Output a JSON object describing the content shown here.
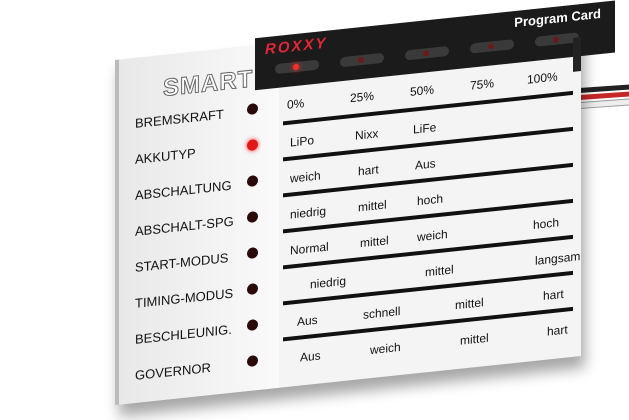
{
  "brand": "ROXXY",
  "card_title": "Program Card",
  "logo": "SMART",
  "header_leds": [
    {
      "on": true
    },
    {
      "on": false
    },
    {
      "on": false
    },
    {
      "on": false
    },
    {
      "on": false
    }
  ],
  "percent_labels": [
    "0%",
    "25%",
    "50%",
    "75%",
    "100%"
  ],
  "rows": [
    {
      "label": "BREMSKRAFT",
      "led_on": false,
      "values": []
    },
    {
      "label": "AKKUTYP",
      "led_on": true,
      "values": [
        "LiPo",
        "Nixx",
        "LiFe"
      ]
    },
    {
      "label": "ABSCHALTUNG",
      "led_on": false,
      "values": [
        "weich",
        "hart",
        "Aus"
      ]
    },
    {
      "label": "ABSCHALT-SPG",
      "led_on": false,
      "values": [
        "niedrig",
        "mittel",
        "hoch"
      ]
    },
    {
      "label": "START-MODUS",
      "led_on": false,
      "values": [
        "Normal",
        "mittel",
        "weich",
        "hoch"
      ]
    },
    {
      "label": "TIMING-MODUS",
      "led_on": false,
      "values": [
        "niedrig",
        "mittel",
        "langsam"
      ]
    },
    {
      "label": "BESCHLEUNIG.",
      "led_on": false,
      "values": [
        "Aus",
        "schnell",
        "mittel",
        "hart"
      ]
    },
    {
      "label": "GOVERNOR",
      "led_on": false,
      "values": [
        "Aus",
        "weich",
        "mittel",
        "hart"
      ]
    }
  ],
  "colors": {
    "led_on": "#e01818",
    "brand": "#e32636",
    "header_bg": "#1b1b1b"
  }
}
